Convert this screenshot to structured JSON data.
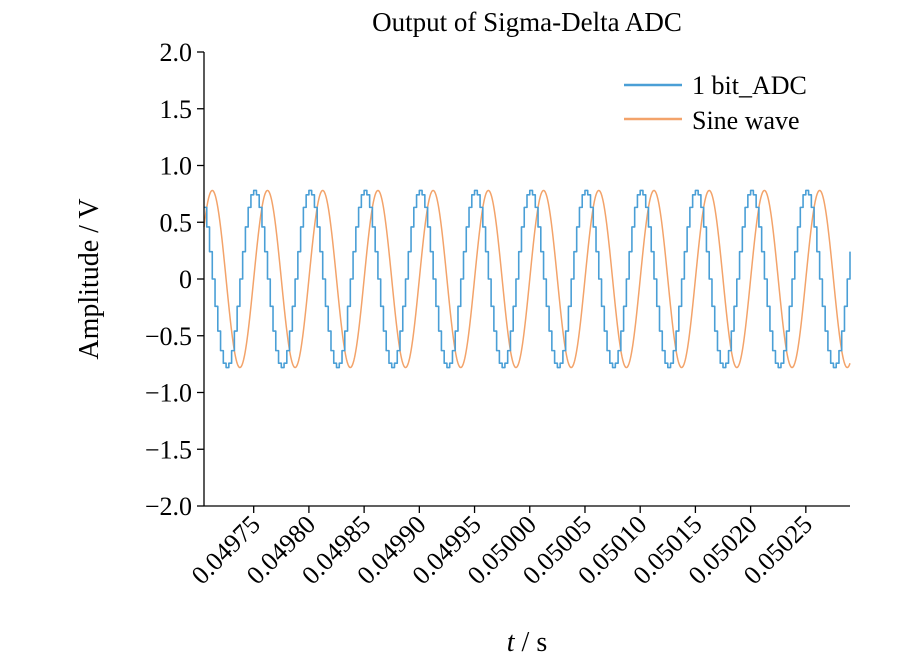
{
  "chart_data": {
    "type": "line",
    "title": "Output of Sigma-Delta ADC",
    "xlabel_var": "t",
    "xlabel_unit": " / s",
    "ylabel": "Amplitude / V",
    "xlim": [
      0.049705,
      0.05029
    ],
    "ylim": [
      -2.0,
      2.0
    ],
    "yticks": [
      2.0,
      1.5,
      1.0,
      0.5,
      0,
      -0.5,
      -1.0,
      -1.5,
      -2.0
    ],
    "ytick_labels": [
      "2.0",
      "1.5",
      "1.0",
      "0.5",
      "0",
      "−0.5",
      "−1.0",
      "−1.5",
      "−2.0"
    ],
    "xticks": [
      0.04975,
      0.0498,
      0.04985,
      0.0499,
      0.04995,
      0.05,
      0.05005,
      0.0501,
      0.05015,
      0.0502,
      0.05025
    ],
    "xtick_labels": [
      "0.04975",
      "0.04980",
      "0.04985",
      "0.04990",
      "0.04995",
      "0.05000",
      "0.05005",
      "0.05010",
      "0.05015",
      "0.05020",
      "0.05025"
    ],
    "grid": false,
    "legend_position": "top-right",
    "series": [
      {
        "name": "1 bit_ADC",
        "color": "#4a9fd6",
        "amplitude": 0.78,
        "frequency_hz": 20000,
        "phase_deg": 90,
        "step_s": 2.5e-06
      },
      {
        "name": "Sine wave",
        "color": "#f3a36a",
        "amplitude": 0.78,
        "frequency_hz": 20000,
        "phase_deg": 0
      }
    ]
  }
}
